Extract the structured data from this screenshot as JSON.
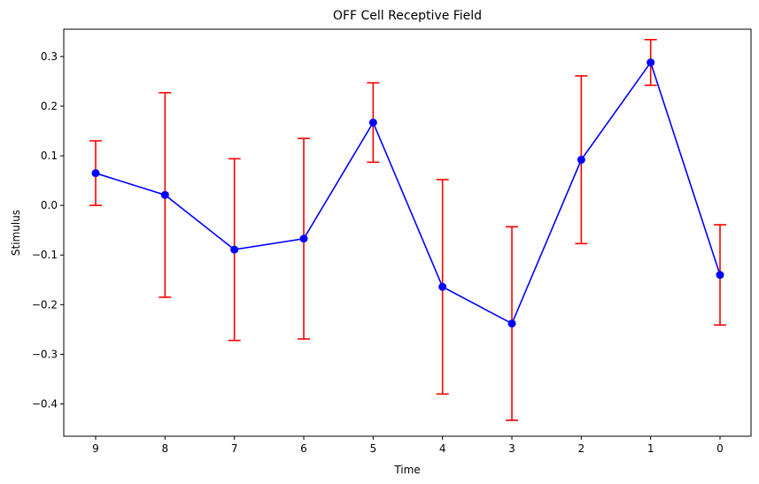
{
  "chart_data": {
    "type": "line",
    "title": "OFF Cell Receptive Field",
    "xlabel": "Time",
    "ylabel": "Stimulus",
    "categories": [
      "9",
      "8",
      "7",
      "6",
      "5",
      "4",
      "3",
      "2",
      "1",
      "0"
    ],
    "series": [
      {
        "values": [
          0.065,
          0.021,
          -0.089,
          -0.067,
          0.167,
          -0.164,
          -0.238,
          0.092,
          0.288,
          -0.14
        ],
        "error": [
          0.065,
          0.206,
          0.183,
          0.202,
          0.08,
          0.216,
          0.195,
          0.169,
          0.046,
          0.101
        ],
        "line_color": "#0000ff",
        "marker_color": "#0000ff",
        "error_color": "#ff0000"
      }
    ],
    "ylim": [
      -0.465,
      0.355
    ],
    "yticks": [
      0.3,
      0.2,
      0.1,
      0.0,
      -0.1,
      -0.2,
      -0.3,
      -0.4
    ],
    "ytick_labels": [
      "0.3",
      "0.2",
      "0.1",
      "0.0",
      "−0.1",
      "−0.2",
      "−0.3",
      "−0.4"
    ],
    "grid": false,
    "legend": "none"
  }
}
